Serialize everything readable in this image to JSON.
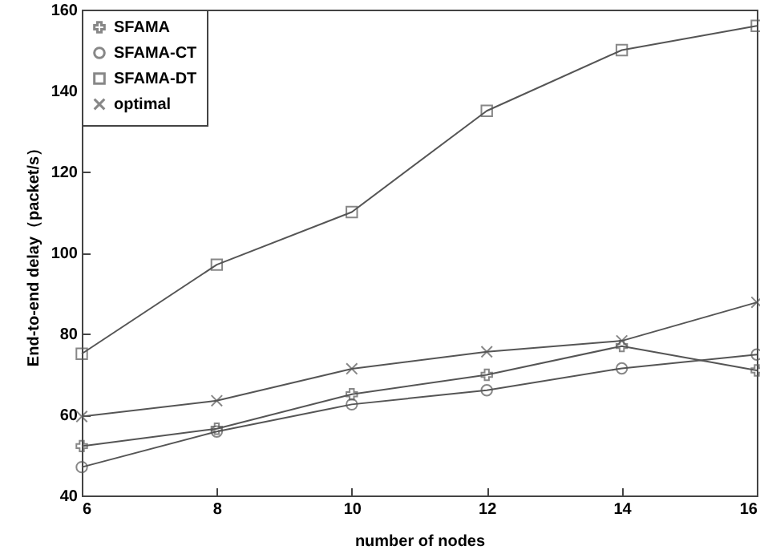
{
  "chart_data": {
    "type": "line",
    "xlabel": "number of nodes",
    "ylabel": "End-to-end delay（packet/s）",
    "x": [
      6,
      8,
      10,
      12,
      14,
      16
    ],
    "series": [
      {
        "name": "SFAMA",
        "color": "#555555",
        "marker": "plus",
        "values": [
          52.2,
          56.5,
          65,
          69.8,
          76.9,
          70.9
        ]
      },
      {
        "name": "SFAMA-CT",
        "color": "#555555",
        "marker": "circle",
        "values": [
          47,
          55.8,
          62.5,
          66,
          71.4,
          74.8
        ]
      },
      {
        "name": "SFAMA-DT",
        "color": "#555555",
        "marker": "square",
        "values": [
          75,
          97,
          110,
          135,
          150,
          156
        ]
      },
      {
        "name": "optimal",
        "color": "#555555",
        "marker": "cross",
        "values": [
          59.5,
          63.4,
          71.3,
          75.5,
          78.2,
          87.7
        ]
      }
    ],
    "xlim": [
      6,
      16
    ],
    "xticks": [
      6,
      8,
      10,
      12,
      14,
      16
    ],
    "ylim": [
      40,
      160
    ],
    "yticks": [
      40,
      60,
      80,
      100,
      120,
      140,
      160
    ],
    "legend": "top left",
    "grid": false,
    "line_style": "solid"
  }
}
